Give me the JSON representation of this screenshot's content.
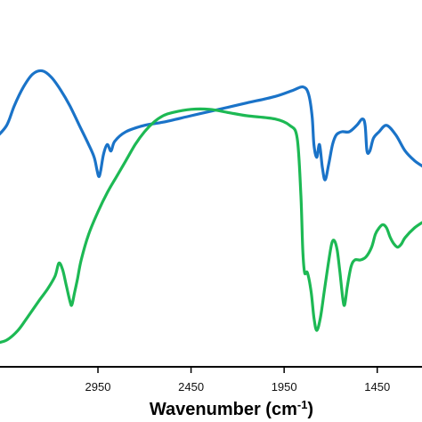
{
  "chart_data": {
    "type": "line",
    "title": "",
    "xlabel": "Wavenumber (cm",
    "xlabel_sup": "-1",
    "xlabel_end": ")",
    "ylabel": "",
    "x_direction": "reversed",
    "xlim": [
      3500,
      1200
    ],
    "ylim": [
      0,
      100
    ],
    "grid": false,
    "legend": "none",
    "x_ticks": [
      2950,
      2450,
      1950,
      1450
    ],
    "x_tick_labels": [
      "2950",
      "2450",
      "1950",
      "1450"
    ],
    "series": [
      {
        "color": "#1a73c8",
        "points": [
          [
            3500,
            68
          ],
          [
            3440,
            72
          ],
          [
            3400,
            78
          ],
          [
            3350,
            84
          ],
          [
            3300,
            88
          ],
          [
            3250,
            89
          ],
          [
            3200,
            87
          ],
          [
            3150,
            83
          ],
          [
            3100,
            78
          ],
          [
            3050,
            72
          ],
          [
            3000,
            66
          ],
          [
            2970,
            62
          ],
          [
            2955,
            58
          ],
          [
            2945,
            56
          ],
          [
            2935,
            58
          ],
          [
            2920,
            63
          ],
          [
            2900,
            66
          ],
          [
            2880,
            64
          ],
          [
            2860,
            67
          ],
          [
            2800,
            70
          ],
          [
            2700,
            72
          ],
          [
            2600,
            73
          ],
          [
            2450,
            75
          ],
          [
            2300,
            77
          ],
          [
            2150,
            79
          ],
          [
            2000,
            81
          ],
          [
            1900,
            83
          ],
          [
            1850,
            84
          ],
          [
            1820,
            82
          ],
          [
            1800,
            75
          ],
          [
            1790,
            66
          ],
          [
            1775,
            62
          ],
          [
            1760,
            66
          ],
          [
            1745,
            59
          ],
          [
            1730,
            55
          ],
          [
            1710,
            60
          ],
          [
            1690,
            66
          ],
          [
            1670,
            69
          ],
          [
            1640,
            70
          ],
          [
            1600,
            70
          ],
          [
            1560,
            72
          ],
          [
            1530,
            74
          ],
          [
            1515,
            72
          ],
          [
            1505,
            64
          ],
          [
            1490,
            64
          ],
          [
            1470,
            68
          ],
          [
            1440,
            70
          ],
          [
            1400,
            72
          ],
          [
            1350,
            69
          ],
          [
            1300,
            64
          ],
          [
            1250,
            61
          ],
          [
            1200,
            59
          ]
        ]
      },
      {
        "color": "#1db954",
        "points": [
          [
            3500,
            4
          ],
          [
            3440,
            5
          ],
          [
            3380,
            8
          ],
          [
            3330,
            12
          ],
          [
            3270,
            17
          ],
          [
            3220,
            21
          ],
          [
            3180,
            25
          ],
          [
            3160,
            29
          ],
          [
            3140,
            27
          ],
          [
            3120,
            22
          ],
          [
            3100,
            17
          ],
          [
            3090,
            16
          ],
          [
            3075,
            20
          ],
          [
            3060,
            24
          ],
          [
            3040,
            30
          ],
          [
            3000,
            38
          ],
          [
            2950,
            45
          ],
          [
            2900,
            51
          ],
          [
            2850,
            56
          ],
          [
            2800,
            61
          ],
          [
            2750,
            66
          ],
          [
            2700,
            70
          ],
          [
            2650,
            73
          ],
          [
            2600,
            75
          ],
          [
            2550,
            76
          ],
          [
            2450,
            77
          ],
          [
            2350,
            77
          ],
          [
            2250,
            76
          ],
          [
            2150,
            75
          ],
          [
            2000,
            74
          ],
          [
            1920,
            72
          ],
          [
            1880,
            68
          ],
          [
            1860,
            50
          ],
          [
            1850,
            33
          ],
          [
            1840,
            26
          ],
          [
            1825,
            26
          ],
          [
            1805,
            20
          ],
          [
            1790,
            12
          ],
          [
            1775,
            8
          ],
          [
            1755,
            12
          ],
          [
            1735,
            20
          ],
          [
            1715,
            28
          ],
          [
            1695,
            35
          ],
          [
            1680,
            36
          ],
          [
            1665,
            33
          ],
          [
            1650,
            26
          ],
          [
            1635,
            18
          ],
          [
            1625,
            16
          ],
          [
            1610,
            22
          ],
          [
            1590,
            28
          ],
          [
            1570,
            30
          ],
          [
            1540,
            30
          ],
          [
            1510,
            31
          ],
          [
            1480,
            34
          ],
          [
            1460,
            38
          ],
          [
            1440,
            40
          ],
          [
            1420,
            41
          ],
          [
            1400,
            40
          ],
          [
            1380,
            37
          ],
          [
            1360,
            35
          ],
          [
            1340,
            34
          ],
          [
            1320,
            35
          ],
          [
            1300,
            37
          ],
          [
            1250,
            40
          ],
          [
            1200,
            42
          ]
        ]
      }
    ]
  }
}
